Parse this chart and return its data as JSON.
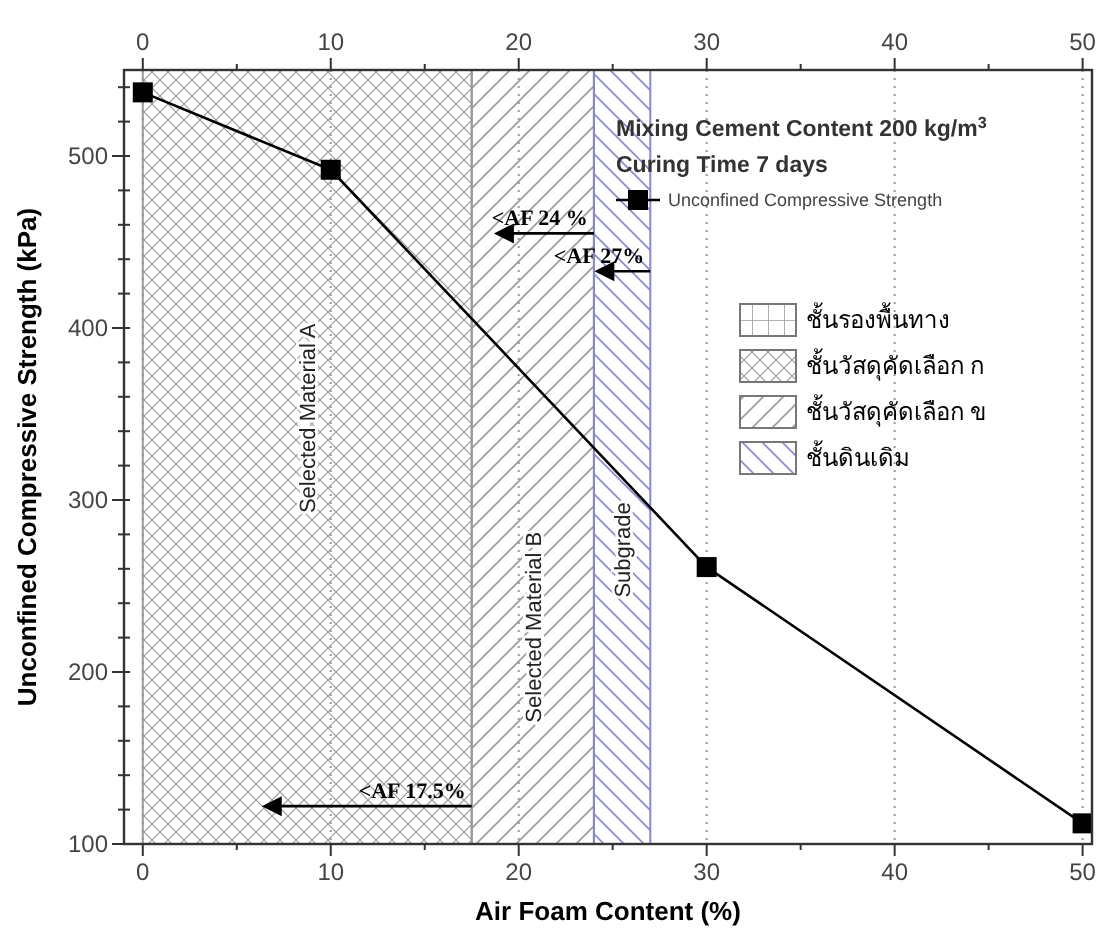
{
  "chart_data": {
    "type": "line",
    "title": "Mixing Cement Content 200 kg/m$^{3}$",
    "subtitle": "Curing Time 7 days",
    "xlabel": "Air Foam Content (%)",
    "ylabel": "Unconfined Compressive Strength (kPa)",
    "x": [
      0,
      10,
      30,
      50
    ],
    "series": [
      {
        "name": "Unconfined Compressive Strength",
        "color": "#000000",
        "values": [
          537,
          492,
          261,
          112
        ]
      }
    ],
    "xlim": [
      -1,
      50.5
    ],
    "ylim": [
      100,
      550
    ],
    "xticks": [
      0,
      {
        "value": 5,
        "label": null
      },
      10,
      {
        "value": 15,
        "label": null
      },
      20,
      {
        "value": 25,
        "label": null
      },
      30,
      {
        "value": 35,
        "label": null
      },
      40,
      {
        "value": 45,
        "label": null
      },
      50
    ],
    "x2lim": [
      -1,
      50.5
    ],
    "x2ticks": [
      0,
      {
        "value": 5,
        "label": null
      },
      10,
      {
        "value": 15,
        "label": null
      },
      20,
      {
        "value": 25,
        "label": null
      },
      30,
      {
        "value": 35,
        "label": null
      },
      40,
      {
        "value": 45,
        "label": null
      },
      50
    ],
    "yticks": [
      100,
      {
        "value": 120,
        "label": null
      },
      {
        "value": 140,
        "label": null
      },
      {
        "value": 160,
        "label": null
      },
      {
        "value": 180,
        "label": null
      },
      200,
      {
        "value": 220,
        "label": null
      },
      {
        "value": 240,
        "label": null
      },
      {
        "value": 260,
        "label": null
      },
      {
        "value": 280,
        "label": null
      },
      300,
      {
        "value": 320,
        "label": null
      },
      {
        "value": 340,
        "label": null
      },
      {
        "value": 360,
        "label": null
      },
      {
        "value": 380,
        "label": null
      },
      400,
      {
        "value": 420,
        "label": null
      },
      {
        "value": 440,
        "label": null
      },
      {
        "value": 460,
        "label": null
      },
      {
        "value": 480,
        "label": null
      },
      500,
      {
        "value": 520,
        "label": null
      },
      {
        "value": 540,
        "label": null
      }
    ],
    "grid": "x",
    "marker": "square",
    "line_style": "solid",
    "legend": "top right",
    "bands": [
      {
        "axis": "x",
        "from": 0,
        "to": 17.5,
        "label": "Selected Material A",
        "color": "#9a9a9a"
      },
      {
        "axis": "x",
        "from": 17.5,
        "to": 24,
        "label": "Selected Material B",
        "color": "#9a9a9a"
      },
      {
        "axis": "x",
        "from": 24,
        "to": 27,
        "label": "Subgrade",
        "color": "#8888cc"
      }
    ],
    "annotations": [
      {
        "text": "<AF 24 %",
        "x": 24,
        "y": 455
      },
      {
        "text": "<AF 27%",
        "x": 27,
        "y": 433
      },
      {
        "text": "<AF 17.5%",
        "x": 17.5,
        "y": 122
      },
      "ชั้นรองพื้นทาง",
      "ชั้นวัสดุคัดเลือก ก",
      "ชั้นวัสดุคัดเลือก ข",
      "ชั้นดินเดิม"
    ]
  }
}
